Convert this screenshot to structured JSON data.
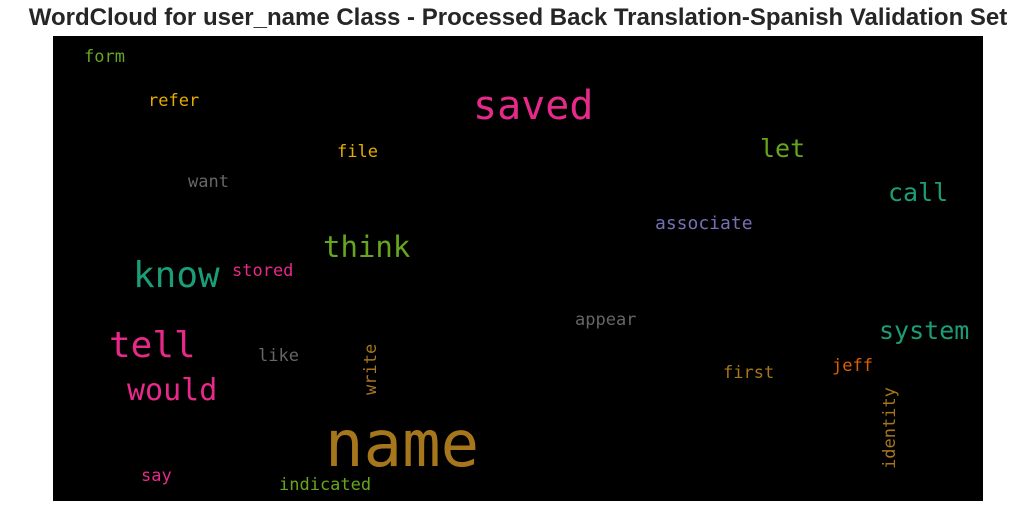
{
  "title": "WordCloud for user_name Class - Processed Back Translation-Spanish Validation Set",
  "chart_data": {
    "type": "wordcloud",
    "title": "WordCloud for user_name Class - Processed Back Translation-Spanish Validation Set",
    "background": "#000000",
    "words": [
      {
        "text": "name",
        "color": "#a6761d",
        "orientation": "horizontal"
      },
      {
        "text": "saved",
        "color": "#e7298a",
        "orientation": "horizontal"
      },
      {
        "text": "know",
        "color": "#1b9e77",
        "orientation": "horizontal"
      },
      {
        "text": "tell",
        "color": "#e7298a",
        "orientation": "horizontal"
      },
      {
        "text": "would",
        "color": "#e7298a",
        "orientation": "horizontal"
      },
      {
        "text": "think",
        "color": "#66a61e",
        "orientation": "horizontal"
      },
      {
        "text": "system",
        "color": "#1b9e77",
        "orientation": "horizontal"
      },
      {
        "text": "call",
        "color": "#1b9e77",
        "orientation": "horizontal"
      },
      {
        "text": "let",
        "color": "#66a61e",
        "orientation": "horizontal"
      },
      {
        "text": "associate",
        "color": "#7570b3",
        "orientation": "horizontal"
      },
      {
        "text": "appear",
        "color": "#666666",
        "orientation": "horizontal"
      },
      {
        "text": "first",
        "color": "#a6761d",
        "orientation": "horizontal"
      },
      {
        "text": "jeff",
        "color": "#d95f02",
        "orientation": "horizontal"
      },
      {
        "text": "identity",
        "color": "#a6761d",
        "orientation": "vertical"
      },
      {
        "text": "write",
        "color": "#a6761d",
        "orientation": "vertical"
      },
      {
        "text": "like",
        "color": "#666666",
        "orientation": "horizontal"
      },
      {
        "text": "stored",
        "color": "#e7298a",
        "orientation": "horizontal"
      },
      {
        "text": "want",
        "color": "#666666",
        "orientation": "horizontal"
      },
      {
        "text": "file",
        "color": "#e6ab02",
        "orientation": "horizontal"
      },
      {
        "text": "refer",
        "color": "#e6ab02",
        "orientation": "horizontal"
      },
      {
        "text": "form",
        "color": "#66a61e",
        "orientation": "horizontal"
      },
      {
        "text": "say",
        "color": "#e7298a",
        "orientation": "horizontal"
      },
      {
        "text": "indicated",
        "color": "#66a61e",
        "orientation": "horizontal"
      }
    ]
  }
}
